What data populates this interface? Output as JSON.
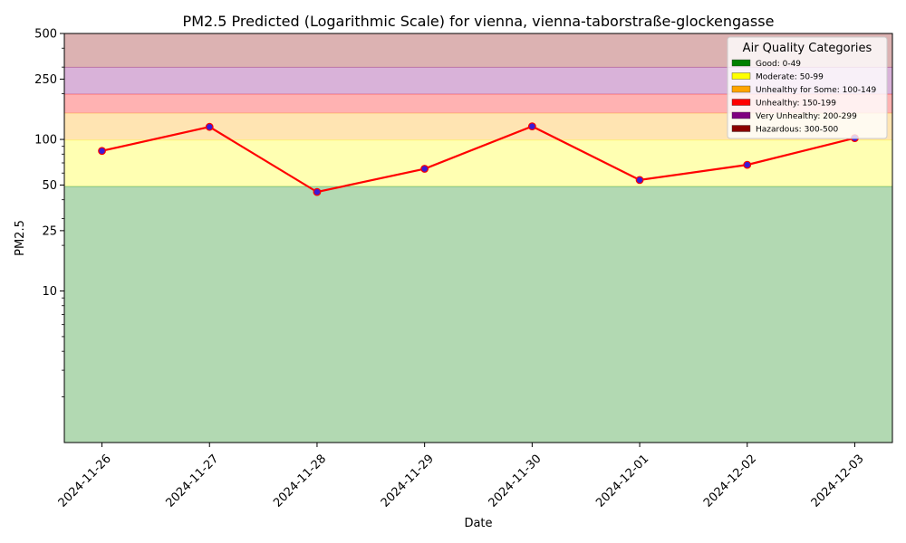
{
  "chart_data": {
    "type": "line",
    "title": "PM2.5 Predicted (Logarithmic Scale) for vienna, vienna-taborstraße-glockengasse",
    "xlabel": "Date",
    "ylabel": "PM2.5",
    "y_scale": "log",
    "ylim": [
      1,
      500
    ],
    "y_ticks": [
      10,
      25,
      50,
      100,
      250,
      500
    ],
    "x": [
      "2024-11-26",
      "2024-11-27",
      "2024-11-28",
      "2024-11-29",
      "2024-11-30",
      "2024-12-01",
      "2024-12-02",
      "2024-12-03"
    ],
    "series": [
      {
        "values": [
          84,
          121,
          45,
          64,
          122,
          54,
          68,
          102
        ],
        "line_color": "#ff0000",
        "marker_color": "#3b1bd6"
      }
    ],
    "bands": [
      {
        "label": "Good: 0-49",
        "from": 0,
        "to": 49,
        "color": "#008000"
      },
      {
        "label": "Moderate: 50-99",
        "from": 49,
        "to": 99,
        "color": "#ffff00"
      },
      {
        "label": "Unhealthy for Some: 100-149",
        "from": 99,
        "to": 149,
        "color": "#ffa500"
      },
      {
        "label": "Unhealthy: 150-199",
        "from": 149,
        "to": 199,
        "color": "#ff0000"
      },
      {
        "label": "Very Unhealthy: 200-299",
        "from": 199,
        "to": 299,
        "color": "#800080"
      },
      {
        "label": "Hazardous: 300-500",
        "from": 299,
        "to": 500,
        "color": "#8b0000"
      }
    ],
    "legend": {
      "title": "Air Quality Categories",
      "position": "top-right"
    },
    "x_tick_rotation": 45
  }
}
